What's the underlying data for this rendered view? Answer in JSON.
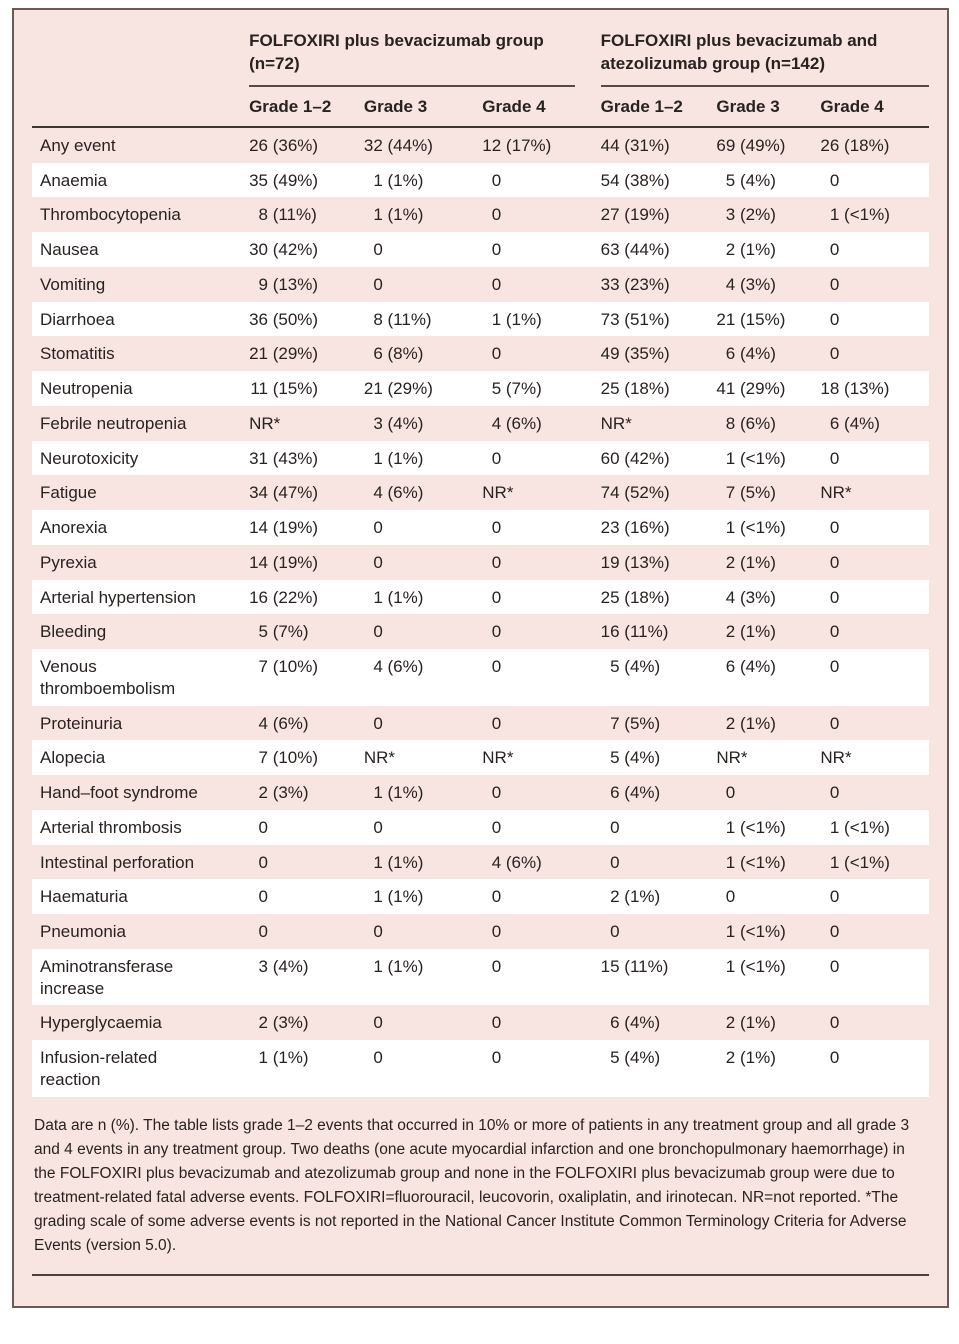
{
  "colors": {
    "panel_background": "#f8e5e2",
    "stripe_row": "#ffffff",
    "panel_border": "#6b5b58",
    "rule_dark": "#3d3531",
    "text": "#282220"
  },
  "table": {
    "groups": [
      {
        "label": "FOLFOXIRI plus bevacizumab group (n=72)"
      },
      {
        "label": "FOLFOXIRI plus bevacizumab and atezolizumab group (n=142)"
      }
    ],
    "grade_headers": [
      "Grade 1–2",
      "Grade 3",
      "Grade 4",
      "Grade 1–2",
      "Grade 3",
      "Grade 4"
    ],
    "rows": [
      {
        "label": "Any event",
        "values": [
          "26 (36%)",
          "32 (44%)",
          "12 (17%)",
          "44 (31%)",
          "69 (49%)",
          "26 (18%)"
        ]
      },
      {
        "label": "Anaemia",
        "values": [
          "35 (49%)",
          "1 (1%)",
          "0",
          "54 (38%)",
          "5 (4%)",
          "0"
        ]
      },
      {
        "label": "Thrombocytopenia",
        "values": [
          "8 (11%)",
          "1 (1%)",
          "0",
          "27 (19%)",
          "3 (2%)",
          "1 (<1%)"
        ]
      },
      {
        "label": "Nausea",
        "values": [
          "30 (42%)",
          "0",
          "0",
          "63 (44%)",
          "2 (1%)",
          "0"
        ]
      },
      {
        "label": "Vomiting",
        "values": [
          "9 (13%)",
          "0",
          "0",
          "33 (23%)",
          "4 (3%)",
          "0"
        ]
      },
      {
        "label": "Diarrhoea",
        "values": [
          "36 (50%)",
          "8 (11%)",
          "1 (1%)",
          "73 (51%)",
          "21 (15%)",
          "0"
        ]
      },
      {
        "label": "Stomatitis",
        "values": [
          "21 (29%)",
          "6 (8%)",
          "0",
          "49 (35%)",
          "6 (4%)",
          "0"
        ]
      },
      {
        "label": "Neutropenia",
        "values": [
          "11 (15%)",
          "21 (29%)",
          "5 (7%)",
          "25 (18%)",
          "41 (29%)",
          "18 (13%)"
        ]
      },
      {
        "label": "Febrile neutropenia",
        "values": [
          "NR*",
          "3 (4%)",
          "4 (6%)",
          "NR*",
          "8 (6%)",
          "6 (4%)"
        ]
      },
      {
        "label": "Neurotoxicity",
        "values": [
          "31 (43%)",
          "1 (1%)",
          "0",
          "60 (42%)",
          "1 (<1%)",
          "0"
        ]
      },
      {
        "label": "Fatigue",
        "values": [
          "34 (47%)",
          "4 (6%)",
          "NR*",
          "74 (52%)",
          "7 (5%)",
          "NR*"
        ]
      },
      {
        "label": "Anorexia",
        "values": [
          "14 (19%)",
          "0",
          "0",
          "23 (16%)",
          "1 (<1%)",
          "0"
        ]
      },
      {
        "label": "Pyrexia",
        "values": [
          "14 (19%)",
          "0",
          "0",
          "19 (13%)",
          "2 (1%)",
          "0"
        ]
      },
      {
        "label": "Arterial hypertension",
        "values": [
          "16 (22%)",
          "1 (1%)",
          "0",
          "25 (18%)",
          "4 (3%)",
          "0"
        ]
      },
      {
        "label": "Bleeding",
        "values": [
          "5 (7%)",
          "0",
          "0",
          "16 (11%)",
          "2 (1%)",
          "0"
        ]
      },
      {
        "label": "Venous thromboembolism",
        "values": [
          "7 (10%)",
          "4 (6%)",
          "0",
          "5 (4%)",
          "6 (4%)",
          "0"
        ]
      },
      {
        "label": "Proteinuria",
        "values": [
          "4 (6%)",
          "0",
          "0",
          "7 (5%)",
          "2 (1%)",
          "0"
        ]
      },
      {
        "label": "Alopecia",
        "values": [
          "7 (10%)",
          "NR*",
          "NR*",
          "5 (4%)",
          "NR*",
          "NR*"
        ]
      },
      {
        "label": "Hand–foot syndrome",
        "values": [
          "2 (3%)",
          "1 (1%)",
          "0",
          "6 (4%)",
          "0",
          "0"
        ]
      },
      {
        "label": "Arterial thrombosis",
        "values": [
          "0",
          "0",
          "0",
          "0",
          "1 (<1%)",
          "1 (<1%)"
        ]
      },
      {
        "label": "Intestinal perforation",
        "values": [
          "0",
          "1 (1%)",
          "4 (6%)",
          "0",
          "1 (<1%)",
          "1 (<1%)"
        ]
      },
      {
        "label": "Haematuria",
        "values": [
          "0",
          "1 (1%)",
          "0",
          "2 (1%)",
          "0",
          "0"
        ]
      },
      {
        "label": "Pneumonia",
        "values": [
          "0",
          "0",
          "0",
          "0",
          "1 (<1%)",
          "0"
        ]
      },
      {
        "label": "Aminotransferase increase",
        "values": [
          "3 (4%)",
          "1 (1%)",
          "0",
          "15 (11%)",
          "1 (<1%)",
          "0"
        ]
      },
      {
        "label": "Hyperglycaemia",
        "values": [
          "2 (3%)",
          "0",
          "0",
          "6 (4%)",
          "2 (1%)",
          "0"
        ]
      },
      {
        "label": "Infusion-related reaction",
        "values": [
          "1 (1%)",
          "0",
          "0",
          "5 (4%)",
          "2 (1%)",
          "0"
        ]
      }
    ],
    "footnote": "Data are n (%). The table lists grade 1–2 events that occurred in 10% or more of patients in any treatment group and all grade 3 and 4 events in any treatment group. Two deaths (one acute myocardial infarction and one bronchopulmonary haemorrhage) in the FOLFOXIRI plus bevacizumab and atezolizumab group and none in the FOLFOXIRI plus bevacizumab group were due to treatment-related fatal adverse events. FOLFOXIRI=fluorouracil, leucovorin, oxaliplatin, and irinotecan. NR=not reported. *The grading scale of some adverse events is not reported in the National Cancer Institute Common Terminology Criteria for Adverse Events (version 5.0)."
  }
}
